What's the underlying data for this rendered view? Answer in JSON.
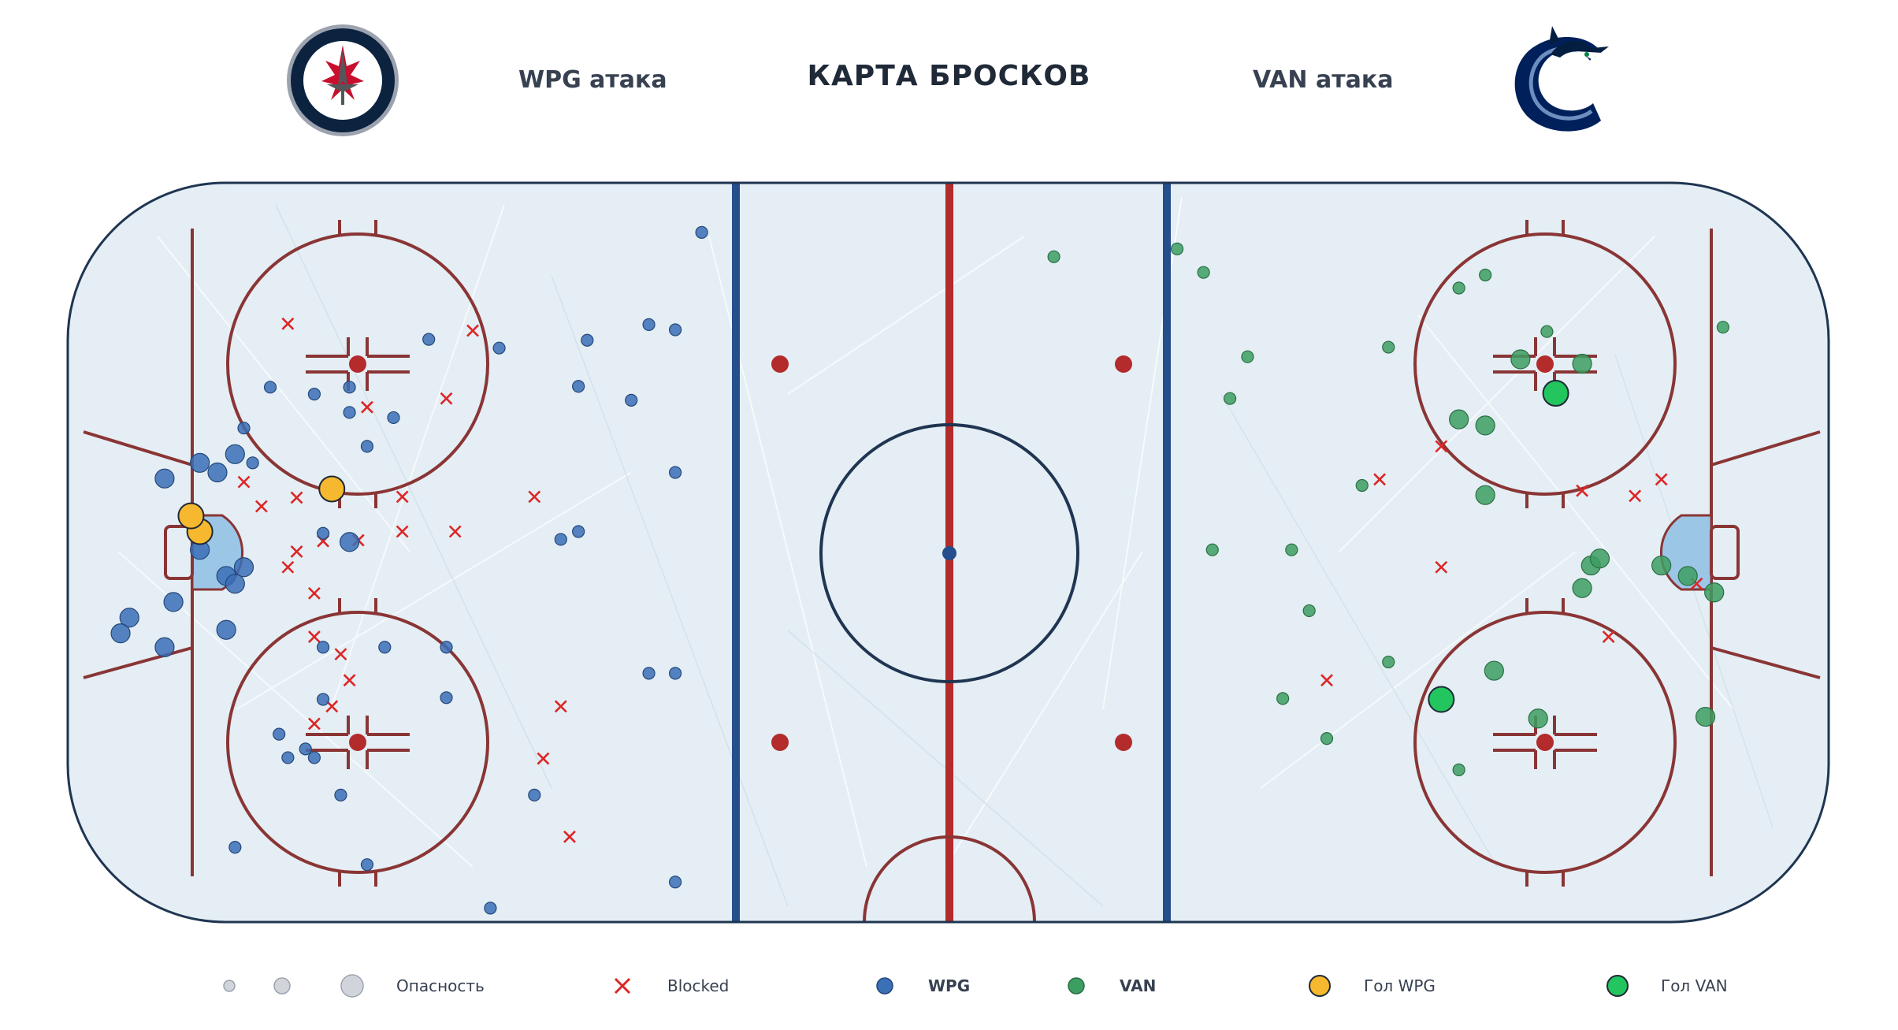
{
  "header": {
    "title": "КАРТА БРОСКОВ",
    "left_attack": "WPG атака",
    "right_attack": "VAN атака"
  },
  "teams": {
    "home": {
      "abbr": "WPG",
      "logo": "winnipeg-jets-logo",
      "color": "#3b6fb6"
    },
    "away": {
      "abbr": "VAN",
      "logo": "vancouver-canucks-logo",
      "color": "#3d9e62"
    }
  },
  "colors": {
    "ice": "#e4eef4",
    "boards": "#1f3551",
    "red_line": "#b32b2b",
    "blue_line": "#264d8c",
    "faceoff_circle": "#8a3535",
    "crease": "#9cc6e6",
    "blocked": "#dc2626",
    "wpg_shot": "#3b6fb6",
    "van_shot": "#3d9e62",
    "wpg_goal": "#f5b82e",
    "van_goal": "#22c55e"
  },
  "legend": {
    "danger": "Опасность",
    "blocked": "Blocked",
    "wpg": "WPG",
    "van": "VAN",
    "goal_wpg": "Гол WPG",
    "goal_van": "Гол VAN"
  },
  "chart_data": {
    "type": "scatter",
    "title": "КАРТА БРОСКОВ",
    "x_range": [
      -100,
      100
    ],
    "y_range": [
      -42.5,
      42.5
    ],
    "size_scale": "danger (1-3)",
    "series": [
      {
        "name": "WPG",
        "points": [
          {
            "x": -89,
            "y": 8.5,
            "s": 2
          },
          {
            "x": -85,
            "y": 10.3,
            "s": 2
          },
          {
            "x": -83,
            "y": 9.2,
            "s": 2
          },
          {
            "x": -81,
            "y": 11.3,
            "s": 2
          },
          {
            "x": -79,
            "y": 10.3,
            "s": 1
          },
          {
            "x": -80,
            "y": 14.3,
            "s": 1
          },
          {
            "x": -85,
            "y": 0.3,
            "s": 2
          },
          {
            "x": -88,
            "y": -5.7,
            "s": 2
          },
          {
            "x": -93,
            "y": -7.5,
            "s": 2
          },
          {
            "x": -94,
            "y": -9.3,
            "s": 2
          },
          {
            "x": -89,
            "y": -10.9,
            "s": 2
          },
          {
            "x": -82,
            "y": -2.7,
            "s": 2
          },
          {
            "x": -80,
            "y": -1.7,
            "s": 2
          },
          {
            "x": -81,
            "y": -3.6,
            "s": 2
          },
          {
            "x": -82,
            "y": -8.9,
            "s": 2
          },
          {
            "x": -77,
            "y": 19.0,
            "s": 1
          },
          {
            "x": -72,
            "y": 18.2,
            "s": 1
          },
          {
            "x": -68,
            "y": 19.0,
            "s": 1
          },
          {
            "x": -63,
            "y": 15.5,
            "s": 1
          },
          {
            "x": -66,
            "y": 12.2,
            "s": 1
          },
          {
            "x": -68,
            "y": 1.2,
            "s": 2
          },
          {
            "x": -68,
            "y": 16.1,
            "s": 1
          },
          {
            "x": -59,
            "y": 24.5,
            "s": 1
          },
          {
            "x": -51,
            "y": 23.5,
            "s": 1
          },
          {
            "x": -41,
            "y": 24.4,
            "s": 1
          },
          {
            "x": -42,
            "y": 19.1,
            "s": 1
          },
          {
            "x": -36,
            "y": 17.5,
            "s": 1
          },
          {
            "x": -34,
            "y": 26.2,
            "s": 1
          },
          {
            "x": -31,
            "y": 25.6,
            "s": 1
          },
          {
            "x": -31,
            "y": 9.2,
            "s": 1
          },
          {
            "x": -28,
            "y": 36.8,
            "s": 1
          },
          {
            "x": -71,
            "y": 2.2,
            "s": 1
          },
          {
            "x": -44,
            "y": 1.5,
            "s": 1
          },
          {
            "x": -42,
            "y": 2.4,
            "s": 1
          },
          {
            "x": -71,
            "y": -10.9,
            "s": 1
          },
          {
            "x": -64,
            "y": -10.9,
            "s": 1
          },
          {
            "x": -57,
            "y": -10.9,
            "s": 1
          },
          {
            "x": -57,
            "y": -16.7,
            "s": 1
          },
          {
            "x": -71,
            "y": -16.9,
            "s": 1
          },
          {
            "x": -76,
            "y": -20.9,
            "s": 1
          },
          {
            "x": -75,
            "y": -23.6,
            "s": 1
          },
          {
            "x": -73,
            "y": -22.6,
            "s": 1
          },
          {
            "x": -72,
            "y": -23.6,
            "s": 1
          },
          {
            "x": -69,
            "y": -27.9,
            "s": 1
          },
          {
            "x": -81,
            "y": -33.9,
            "s": 1
          },
          {
            "x": -66,
            "y": -35.9,
            "s": 1
          },
          {
            "x": -34,
            "y": -13.9,
            "s": 1
          },
          {
            "x": -31,
            "y": -13.9,
            "s": 1
          },
          {
            "x": -47,
            "y": -27.9,
            "s": 1
          },
          {
            "x": -31,
            "y": -37.9,
            "s": 1
          },
          {
            "x": -52,
            "y": -40.9,
            "s": 1
          }
        ]
      },
      {
        "name": "VAN",
        "points": [
          {
            "x": 26,
            "y": 34.9,
            "s": 1
          },
          {
            "x": 29,
            "y": 32.2,
            "s": 1
          },
          {
            "x": 12,
            "y": 34.0,
            "s": 1
          },
          {
            "x": 34,
            "y": 22.5,
            "s": 1
          },
          {
            "x": 32,
            "y": 17.7,
            "s": 1
          },
          {
            "x": 50,
            "y": 23.6,
            "s": 1
          },
          {
            "x": 61,
            "y": 31.9,
            "s": 1
          },
          {
            "x": 58,
            "y": 30.4,
            "s": 1
          },
          {
            "x": 68,
            "y": 25.4,
            "s": 1
          },
          {
            "x": 65,
            "y": 22.2,
            "s": 2
          },
          {
            "x": 72,
            "y": 21.7,
            "s": 2
          },
          {
            "x": 58,
            "y": 15.3,
            "s": 2
          },
          {
            "x": 61,
            "y": 14.6,
            "s": 2
          },
          {
            "x": 88,
            "y": 25.9,
            "s": 1
          },
          {
            "x": 47,
            "y": 7.7,
            "s": 1
          },
          {
            "x": 61,
            "y": 6.6,
            "s": 2
          },
          {
            "x": 30,
            "y": 0.3,
            "s": 1
          },
          {
            "x": 39,
            "y": 0.3,
            "s": 1
          },
          {
            "x": 41,
            "y": -6.7,
            "s": 1
          },
          {
            "x": 50,
            "y": -12.6,
            "s": 1
          },
          {
            "x": 38,
            "y": -16.8,
            "s": 1
          },
          {
            "x": 43,
            "y": -21.4,
            "s": 1
          },
          {
            "x": 62,
            "y": -13.6,
            "s": 2
          },
          {
            "x": 67,
            "y": -19.1,
            "s": 2
          },
          {
            "x": 58,
            "y": -25.0,
            "s": 1
          },
          {
            "x": 86,
            "y": -18.9,
            "s": 2
          },
          {
            "x": 72,
            "y": -4.1,
            "s": 2
          },
          {
            "x": 73,
            "y": -1.5,
            "s": 2
          },
          {
            "x": 74,
            "y": -0.7,
            "s": 2
          },
          {
            "x": 81,
            "y": -1.5,
            "s": 2
          },
          {
            "x": 84,
            "y": -2.7,
            "s": 2
          },
          {
            "x": 87,
            "y": -4.6,
            "s": 2
          }
        ]
      },
      {
        "name": "Blocked",
        "points": [
          {
            "x": -75,
            "y": 26.3
          },
          {
            "x": -54,
            "y": 25.5
          },
          {
            "x": -66,
            "y": 16.7
          },
          {
            "x": -57,
            "y": 17.7
          },
          {
            "x": -80,
            "y": 8.1
          },
          {
            "x": -78,
            "y": 5.3
          },
          {
            "x": -74,
            "y": 6.3
          },
          {
            "x": -71,
            "y": 1.3
          },
          {
            "x": -67,
            "y": 1.4
          },
          {
            "x": -62,
            "y": 6.4
          },
          {
            "x": -62,
            "y": 2.4
          },
          {
            "x": -56,
            "y": 2.4
          },
          {
            "x": -47,
            "y": 6.4
          },
          {
            "x": -75,
            "y": -1.7
          },
          {
            "x": -74,
            "y": 0.1
          },
          {
            "x": -72,
            "y": -4.7
          },
          {
            "x": -72,
            "y": -9.7
          },
          {
            "x": -69,
            "y": -11.7
          },
          {
            "x": -68,
            "y": -14.7
          },
          {
            "x": -72,
            "y": -19.7
          },
          {
            "x": -70,
            "y": -17.7
          },
          {
            "x": -44,
            "y": -17.7
          },
          {
            "x": -46,
            "y": -23.7
          },
          {
            "x": -43,
            "y": -32.7
          },
          {
            "x": 49,
            "y": 8.4
          },
          {
            "x": 56,
            "y": -1.7
          },
          {
            "x": 56,
            "y": 12.2
          },
          {
            "x": 72,
            "y": 7.1
          },
          {
            "x": 78,
            "y": 6.5
          },
          {
            "x": 81,
            "y": 8.4
          },
          {
            "x": 75,
            "y": -9.7
          },
          {
            "x": 43,
            "y": -14.7
          },
          {
            "x": 85,
            "y": -3.6
          }
        ]
      },
      {
        "name": "Гол WPG",
        "points": [
          {
            "x": -85,
            "y": 2.4,
            "s": 2
          },
          {
            "x": -86,
            "y": 4.2,
            "s": 2
          },
          {
            "x": -70,
            "y": 7.3,
            "s": 2
          }
        ]
      },
      {
        "name": "Гол VAN",
        "points": [
          {
            "x": 69,
            "y": 18.3,
            "s": 2
          },
          {
            "x": 56,
            "y": -16.9,
            "s": 2
          }
        ]
      }
    ]
  }
}
